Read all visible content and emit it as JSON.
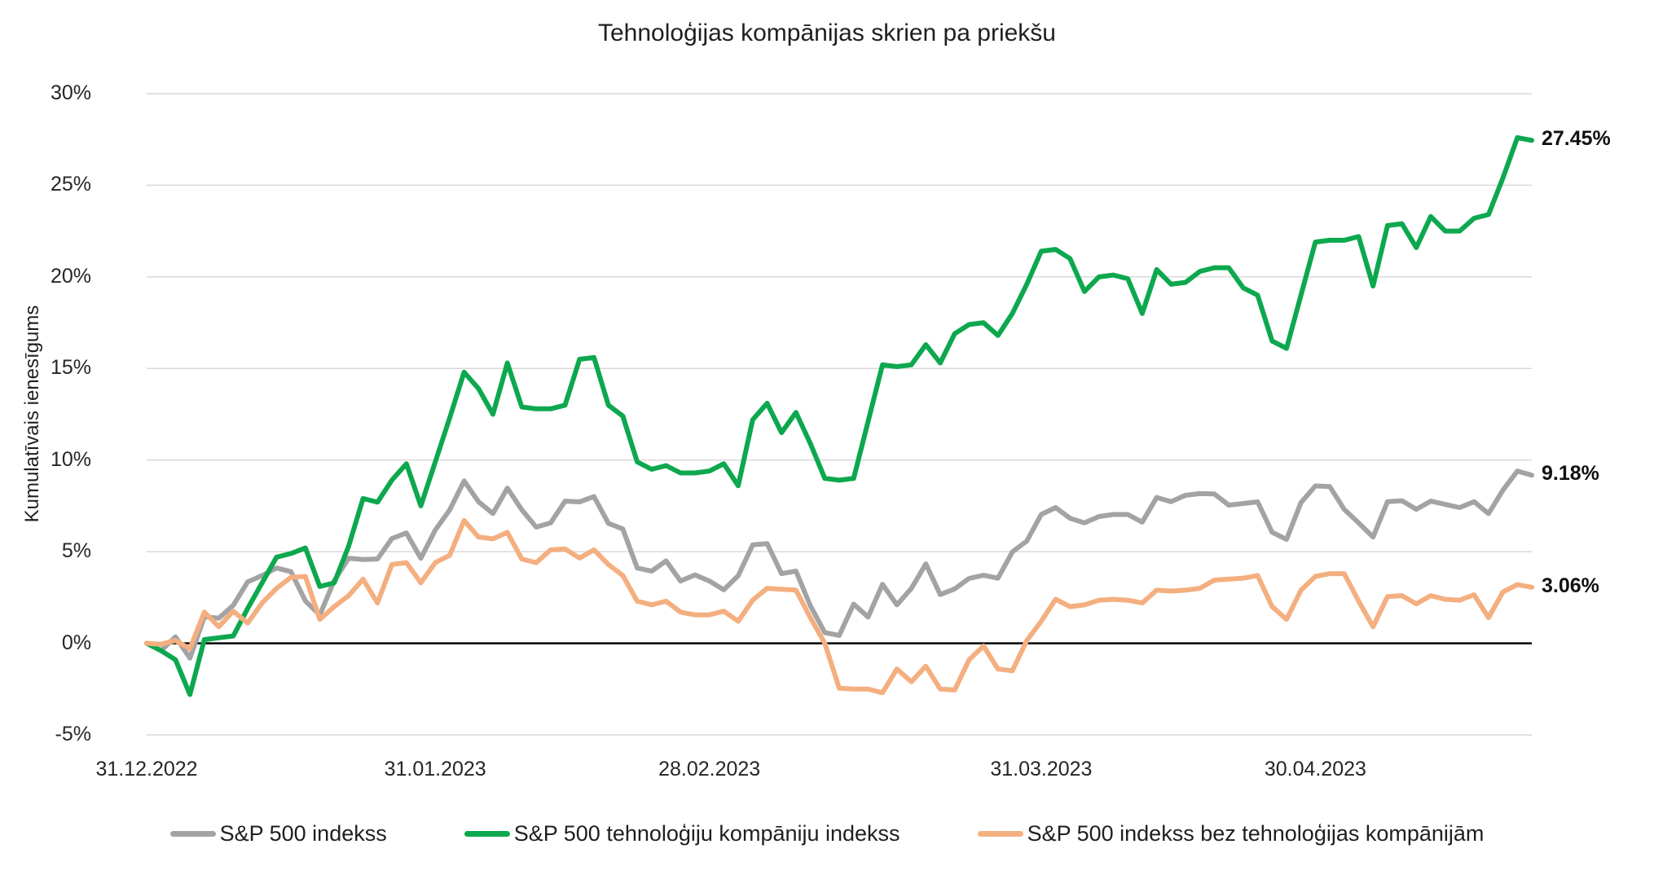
{
  "title": "Tehnoloģijas kompānijas skrien pa priekšu",
  "y_axis_title": "Kumulatīvais ienesīgums",
  "colors": {
    "sp500": "#A3A3A3",
    "tech": "#0DA84E",
    "ex_tech": "#F4AF80",
    "gridline": "#D9D9D9",
    "zero_line": "#000000",
    "text": "#1F1F1F"
  },
  "legend": [
    {
      "series": "sp500",
      "label": "S&P 500 indekss"
    },
    {
      "series": "tech",
      "label": "S&P 500 tehnoloģiju kompāniju indekss"
    },
    {
      "series": "ex_tech",
      "label": "S&P 500 indekss bez tehnoloģijas kompānijām"
    }
  ],
  "end_labels": [
    {
      "series": "tech",
      "text": "27.45%"
    },
    {
      "series": "sp500",
      "text": "9.18%"
    },
    {
      "series": "ex_tech",
      "text": "3.06%"
    }
  ],
  "chart_data": {
    "type": "line",
    "title": "Tehnoloģijas kompānijas skrien pa priekšu",
    "xlabel": "",
    "ylabel": "Kumulatīvais ienesīgums",
    "x_unit": "trading days from 31.12.2022 to 19.05.2023",
    "x_range": [
      0,
      96
    ],
    "ylim": [
      -5,
      30
    ],
    "grid": "horizontal",
    "legend_position": "bottom",
    "y_ticks": [
      {
        "value": 30,
        "label": "30%"
      },
      {
        "value": 25,
        "label": "25%"
      },
      {
        "value": 20,
        "label": "20%"
      },
      {
        "value": 15,
        "label": "15%"
      },
      {
        "value": 10,
        "label": "10%"
      },
      {
        "value": 5,
        "label": "5%"
      },
      {
        "value": 0,
        "label": "0%"
      },
      {
        "value": -5,
        "label": "-5%"
      }
    ],
    "x_ticks": [
      {
        "day": 0,
        "label": "31.12.2022"
      },
      {
        "day": 20,
        "label": "31.01.2023"
      },
      {
        "day": 39,
        "label": "28.02.2023"
      },
      {
        "day": 62,
        "label": "31.03.2023"
      },
      {
        "day": 81,
        "label": "30.04.2023"
      }
    ],
    "series": [
      {
        "id": "sp500",
        "name": "S&P 500 indekss",
        "end_value": 9.18,
        "end_value_label": "9.18%",
        "values": [
          0,
          -0.4,
          0.35,
          -0.81,
          1.45,
          1.37,
          2.07,
          3.35,
          3.7,
          4.11,
          3.91,
          2.31,
          1.54,
          3.42,
          4.64,
          4.57,
          4.6,
          5.72,
          6.02,
          4.64,
          6.18,
          7.28,
          8.86,
          7.73,
          7.08,
          8.47,
          7.29,
          6.34,
          6.57,
          7.76,
          7.72,
          8.01,
          6.55,
          6.24,
          4.11,
          3.94,
          4.5,
          3.4,
          3.73,
          3.4,
          2.92,
          3.69,
          5.37,
          5.44,
          3.8,
          3.94,
          2.05,
          0.58,
          0.43,
          2.14,
          1.43,
          3.22,
          2.1,
          2.99,
          4.33,
          2.66,
          2.97,
          3.54,
          3.71,
          3.55,
          4.99,
          5.58,
          7.03,
          7.41,
          6.82,
          6.57,
          6.92,
          7.03,
          7.03,
          6.61,
          7.96,
          7.73,
          8.08,
          8.17,
          8.15,
          7.54,
          7.63,
          7.72,
          6.06,
          5.67,
          7.68,
          8.59,
          8.55,
          7.31,
          6.57,
          5.8,
          7.73,
          7.78,
          7.31,
          7.76,
          7.58,
          7.41,
          7.73,
          7.08,
          8.36,
          9.4,
          9.18
        ]
      },
      {
        "id": "tech",
        "name": "S&P 500 tehnoloģiju kompāniju indekss",
        "end_value": 27.45,
        "end_value_label": "27.45%",
        "values": [
          0,
          -0.4,
          -0.9,
          -2.8,
          0.2,
          0.3,
          0.4,
          1.9,
          3.3,
          4.7,
          4.9,
          5.2,
          3.1,
          3.3,
          5.3,
          7.9,
          7.7,
          8.9,
          9.8,
          7.5,
          9.9,
          12.3,
          14.8,
          13.9,
          12.5,
          15.3,
          12.9,
          12.8,
          12.8,
          13,
          15.5,
          15.6,
          13,
          12.4,
          9.9,
          9.5,
          9.7,
          9.3,
          9.3,
          9.4,
          9.8,
          8.6,
          12.2,
          13.1,
          11.5,
          12.6,
          10.9,
          9,
          8.9,
          9,
          12.1,
          15.2,
          15.1,
          15.2,
          16.3,
          15.3,
          16.9,
          17.4,
          17.5,
          16.8,
          18,
          19.6,
          21.4,
          21.5,
          21,
          19.2,
          20,
          20.1,
          19.9,
          18,
          20.4,
          19.6,
          19.7,
          20.3,
          20.5,
          20.5,
          19.4,
          19,
          16.5,
          16.1,
          19,
          21.9,
          22,
          22,
          22.2,
          19.5,
          22.8,
          22.9,
          21.6,
          23.3,
          22.5,
          22.5,
          23.2,
          23.4,
          25.4,
          27.6,
          27.45
        ]
      },
      {
        "id": "ex_tech",
        "name": "S&P 500 indekss bez tehnoloģijas kompānijām",
        "end_value": 3.06,
        "end_value_label": "3.06%",
        "values": [
          0,
          -0.05,
          0.15,
          -0.3,
          1.7,
          0.9,
          1.75,
          1.1,
          2.2,
          3,
          3.6,
          3.65,
          1.3,
          2,
          2.6,
          3.5,
          2.2,
          4.3,
          4.4,
          3.3,
          4.4,
          4.8,
          6.7,
          5.8,
          5.7,
          6.05,
          4.6,
          4.4,
          5.1,
          5.15,
          4.65,
          5.1,
          4.3,
          3.7,
          2.3,
          2.1,
          2.3,
          1.7,
          1.55,
          1.55,
          1.75,
          1.2,
          2.35,
          3,
          2.95,
          2.9,
          1.4,
          0,
          -2.45,
          -2.5,
          -2.5,
          -2.7,
          -1.4,
          -2.1,
          -1.25,
          -2.5,
          -2.55,
          -0.9,
          -0.15,
          -1.4,
          -1.5,
          0.15,
          1.2,
          2.4,
          2,
          2.1,
          2.35,
          2.4,
          2.35,
          2.2,
          2.9,
          2.85,
          2.9,
          3,
          3.45,
          3.5,
          3.55,
          3.7,
          2,
          1.3,
          2.9,
          3.65,
          3.8,
          3.8,
          2.3,
          0.9,
          2.55,
          2.6,
          2.15,
          2.6,
          2.4,
          2.35,
          2.65,
          1.4,
          2.8,
          3.2,
          3.06
        ]
      }
    ]
  }
}
